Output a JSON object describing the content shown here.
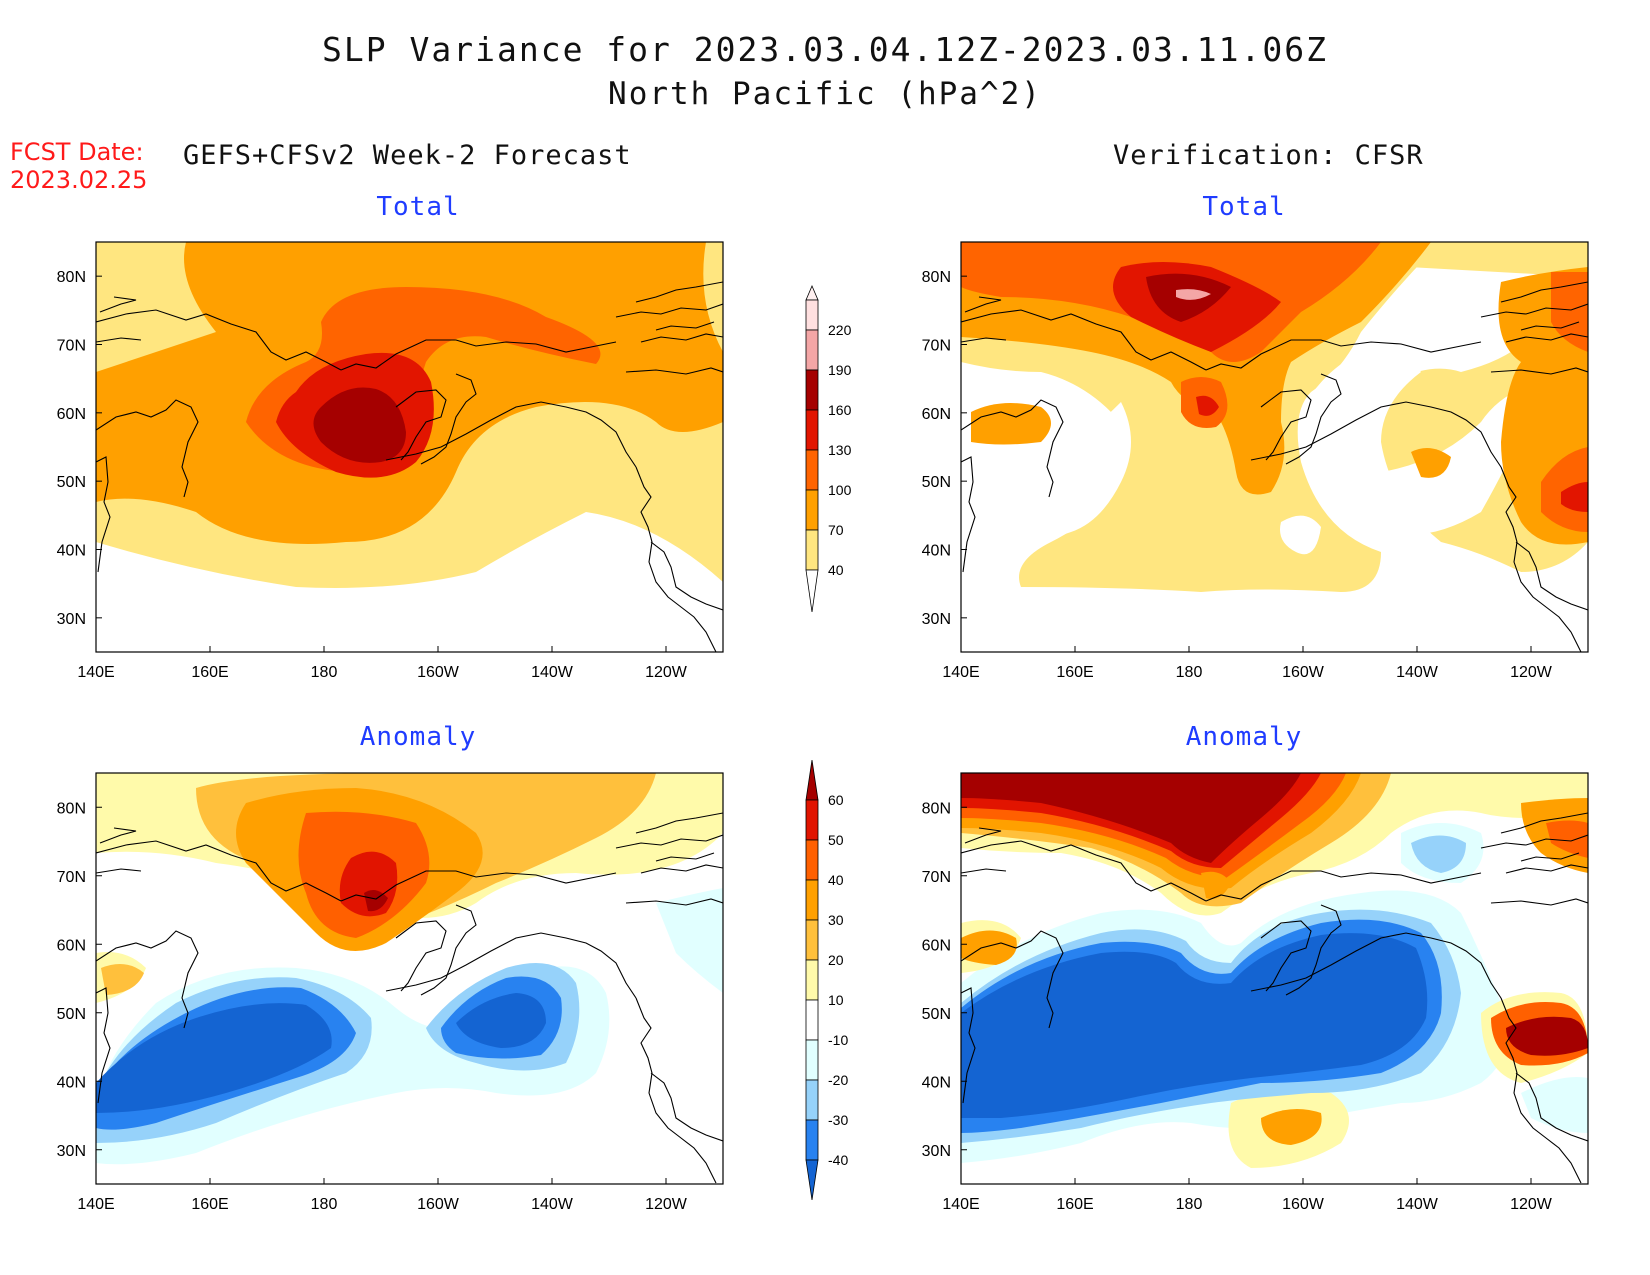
{
  "figure": {
    "title_line1": "SLP Variance for 2023.03.04.12Z-2023.03.11.06Z",
    "title_line2": "North Pacific (hPa^2)",
    "fcst_label": "FCST Date:",
    "fcst_date": "2023.02.25",
    "left_header": "GEFS+CFSv2 Week-2 Forecast",
    "right_header": "Verification: CFSR"
  },
  "panels": {
    "top_left_title": "Total",
    "top_right_title": "Total",
    "bottom_left_title": "Anomaly",
    "bottom_right_title": "Anomaly"
  },
  "chart_data": [
    {
      "type": "heatmap",
      "panel": "top-left",
      "title": "Total",
      "x_ticks": [
        "140E",
        "160E",
        "180",
        "160W",
        "140W",
        "120W"
      ],
      "y_ticks": [
        "30N",
        "40N",
        "50N",
        "60N",
        "70N",
        "80N"
      ],
      "colorbar_levels": [
        "40",
        "70",
        "100",
        "130",
        "160",
        "190",
        "220"
      ],
      "colors": [
        "#ffffff",
        "#ffe680",
        "#ffa000",
        "#ff6400",
        "#e21500",
        "#a50000",
        "#f4a6a6",
        "#ffe0e0"
      ]
    },
    {
      "type": "heatmap",
      "panel": "top-right",
      "title": "Total",
      "x_ticks": [
        "140E",
        "160E",
        "180",
        "160W",
        "140W",
        "120W"
      ],
      "y_ticks": [
        "30N",
        "40N",
        "50N",
        "60N",
        "70N",
        "80N"
      ]
    },
    {
      "type": "heatmap",
      "panel": "bottom-left",
      "title": "Anomaly",
      "x_ticks": [
        "140E",
        "160E",
        "180",
        "160W",
        "140W",
        "120W"
      ],
      "y_ticks": [
        "30N",
        "40N",
        "50N",
        "60N",
        "70N",
        "80N"
      ],
      "colorbar_levels": [
        "-40",
        "-30",
        "-20",
        "-10",
        "10",
        "20",
        "30",
        "40",
        "50",
        "60"
      ],
      "colors": [
        "#1464d2",
        "#2882f0",
        "#96d2fa",
        "#e1ffff",
        "#ffffff",
        "#fffaaa",
        "#ffc03c",
        "#ffa000",
        "#ff6000",
        "#e11400",
        "#a50000"
      ]
    },
    {
      "type": "heatmap",
      "panel": "bottom-right",
      "title": "Anomaly",
      "x_ticks": [
        "140E",
        "160E",
        "180",
        "160W",
        "140W",
        "120W"
      ],
      "y_ticks": [
        "30N",
        "40N",
        "50N",
        "60N",
        "70N",
        "80N"
      ]
    }
  ]
}
